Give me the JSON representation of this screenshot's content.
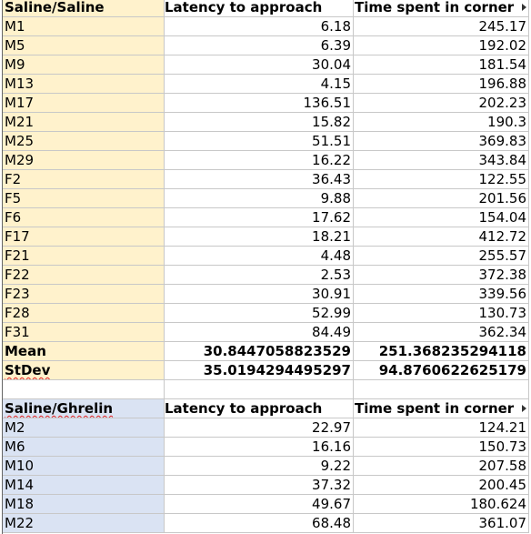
{
  "blocks": [
    {
      "header": [
        "Saline/Saline",
        "Latency to approach",
        "Time spent in corner"
      ],
      "header_spell": false,
      "fill": "#fff2cc",
      "rows": [
        [
          "M1",
          "6.18",
          "245.17"
        ],
        [
          "M5",
          "6.39",
          "192.02"
        ],
        [
          "M9",
          "30.04",
          "181.54"
        ],
        [
          "M13",
          "4.15",
          "196.88"
        ],
        [
          "M17",
          "136.51",
          "202.23"
        ],
        [
          "M21",
          "15.82",
          "190.3"
        ],
        [
          "M25",
          "51.51",
          "369.83"
        ],
        [
          "M29",
          "16.22",
          "343.84"
        ],
        [
          "F2",
          "36.43",
          "122.55"
        ],
        [
          "F5",
          "9.88",
          "201.56"
        ],
        [
          "F6",
          "17.62",
          "154.04"
        ],
        [
          "F17",
          "18.21",
          "412.72"
        ],
        [
          "F21",
          "4.48",
          "255.57"
        ],
        [
          "F22",
          "2.53",
          "372.38"
        ],
        [
          "F23",
          "30.91",
          "339.56"
        ],
        [
          "F28",
          "52.99",
          "130.73"
        ],
        [
          "F31",
          "84.49",
          "362.34"
        ]
      ],
      "summary": [
        [
          "Mean",
          "30.8447058823529",
          "251.368235294118"
        ],
        [
          "StDev",
          "35.0194294495297",
          "94.8760622625179"
        ]
      ]
    },
    {
      "header": [
        "Saline/Ghrelin",
        "Latency to approach",
        "Time spent in corner"
      ],
      "header_spell": true,
      "fill": "#dae3f3",
      "rows": [
        [
          "M2",
          "22.97",
          "124.21"
        ],
        [
          "M6",
          "16.16",
          "150.73"
        ],
        [
          "M10",
          "9.22",
          "207.58"
        ],
        [
          "M14",
          "37.32",
          "200.45"
        ],
        [
          "M18",
          "49.67",
          "180.624"
        ],
        [
          "M22",
          "68.48",
          "361.07"
        ]
      ],
      "summary": []
    }
  ]
}
